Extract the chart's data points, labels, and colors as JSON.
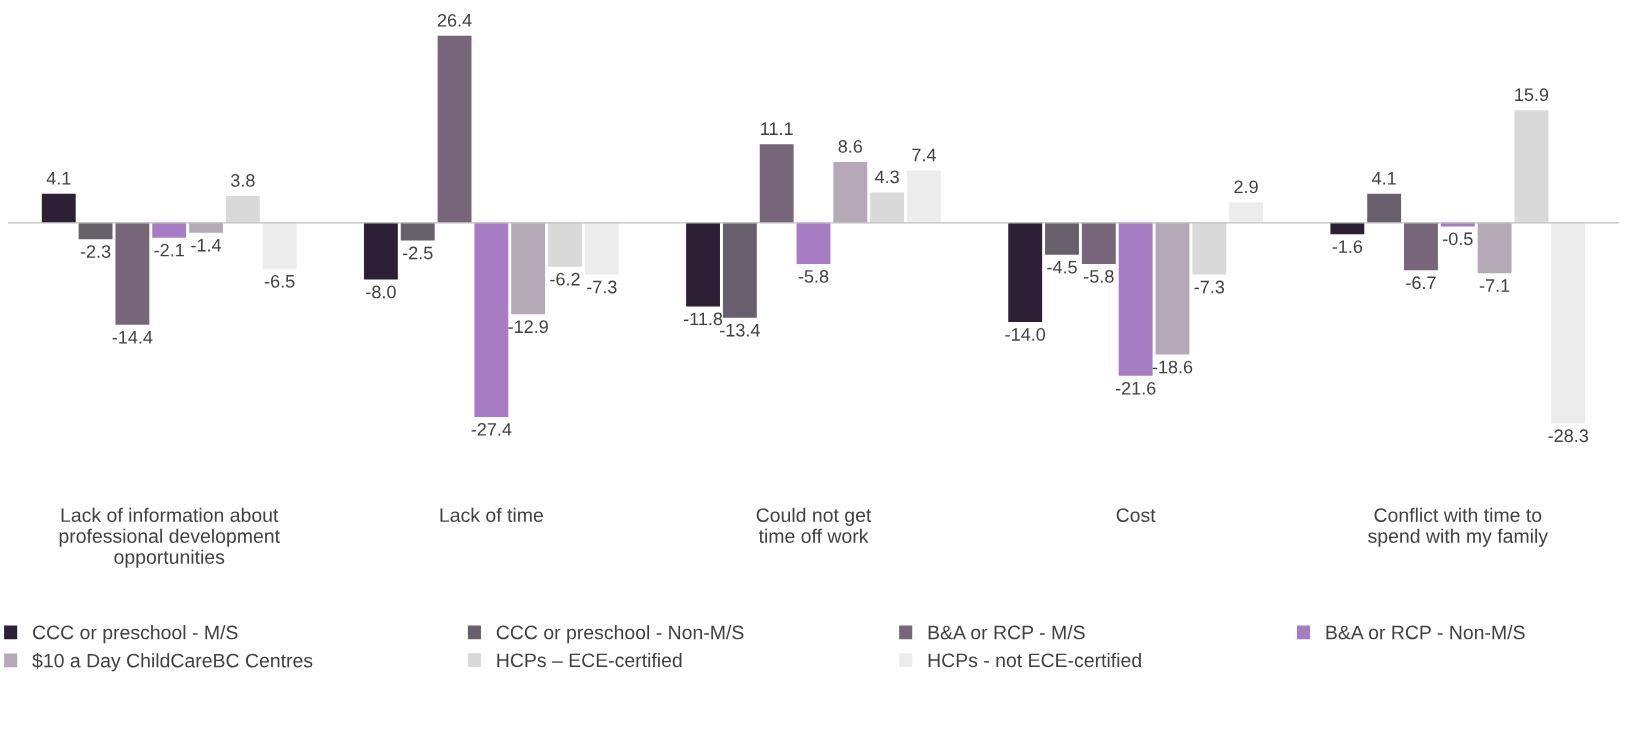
{
  "chart_data": {
    "type": "bar",
    "categories": [
      "Lack of information about\nprofessional development\nopportunities",
      "Lack of time",
      "Could not get\ntime off work",
      "Cost",
      "Conflict with time to\nspend with my family"
    ],
    "series": [
      {
        "name": "CCC or preschool - M/S",
        "color": "#2d1f35",
        "values": [
          4.1,
          -8.0,
          -11.8,
          -14.0,
          -1.6
        ],
        "value_labels": [
          "4.1",
          "-8.0",
          "-11.8",
          "-14.0",
          "-1.6"
        ]
      },
      {
        "name": "CCC or preschool - Non-M/S",
        "color": "#67606c",
        "values": [
          -2.3,
          -2.5,
          -13.4,
          -4.5,
          4.1
        ],
        "value_labels": [
          "-2.3",
          "-2.5",
          "-13.4",
          "-4.5",
          "4.1"
        ]
      },
      {
        "name": "B&A or RCP - M/S",
        "color": "#776579",
        "values": [
          -14.4,
          26.4,
          11.1,
          -5.8,
          -6.7
        ],
        "value_labels": [
          "-14.4",
          "26.4",
          "11.1",
          "-5.8",
          "-6.7"
        ]
      },
      {
        "name": "B&A or RCP - Non-M/S",
        "color": "#a67cc4",
        "values": [
          -2.1,
          -27.4,
          -5.8,
          -21.6,
          -0.5
        ],
        "value_labels": [
          "-2.1",
          "-27.4",
          "-5.8",
          "-21.6",
          "-0.5"
        ]
      },
      {
        "name": "$10 a Day ChildCareBC Centres",
        "color": "#b5a9b8",
        "values": [
          -1.4,
          -12.9,
          8.6,
          -18.6,
          -7.1
        ],
        "value_labels": [
          "-1.4",
          "-12.9",
          "8.6",
          "-18.6",
          "-7.1"
        ]
      },
      {
        "name": "HCPs – ECE-certified",
        "color": "#d9d9d9",
        "values": [
          3.8,
          -6.2,
          4.3,
          -7.3,
          15.9
        ],
        "value_labels": [
          "3.8",
          "-6.2",
          "4.3",
          "-7.3",
          "15.9"
        ]
      },
      {
        "name": "HCPs - not ECE-certified",
        "color": "#ececec",
        "values": [
          -6.5,
          -7.3,
          7.4,
          2.9,
          -28.3
        ],
        "value_labels": [
          "-6.5",
          "-7.3",
          "7.4",
          "2.9",
          "-28.3"
        ]
      }
    ],
    "legend": "bottom",
    "grid": false
  }
}
